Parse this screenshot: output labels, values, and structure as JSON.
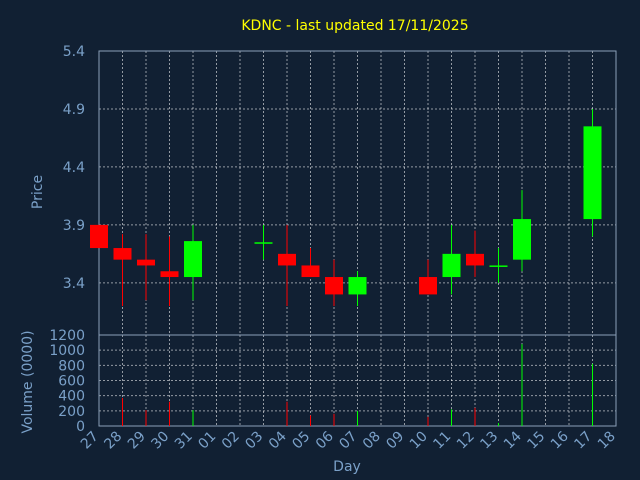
{
  "colors": {
    "background": "#112033",
    "up": "#00ff00",
    "down": "#ff0000",
    "wick_down": "#ff0000",
    "wick_up": "#00ff00",
    "text": "#7aa0c8",
    "title": "#ffff00"
  },
  "chart_data": {
    "type": "candlestick",
    "title": "KDNC - last updated 17/11/2025",
    "xlabel": "Day",
    "ylabel": "Price",
    "volume_label": "Volume (0000)",
    "grid": true,
    "categories": [
      "27",
      "28",
      "29",
      "30",
      "31",
      "01",
      "02",
      "03",
      "04",
      "05",
      "06",
      "07",
      "08",
      "09",
      "10",
      "11",
      "12",
      "13",
      "14",
      "15",
      "16",
      "17",
      "18"
    ],
    "price_ylim": [
      2.95,
      5.4
    ],
    "price_ticks": [
      "3.4",
      "3.9",
      "4.4",
      "4.9",
      "5.4"
    ],
    "volume_ylim": [
      0,
      1200
    ],
    "volume_ticks": [
      "0",
      "200",
      "400",
      "600",
      "800",
      "1000",
      "1200"
    ],
    "candles": [
      {
        "day": "27",
        "open": 3.9,
        "close": 3.7,
        "high": 3.9,
        "low": 3.7
      },
      {
        "day": "28",
        "open": 3.7,
        "close": 3.6,
        "high": 3.82,
        "low": 3.2
      },
      {
        "day": "29",
        "open": 3.6,
        "close": 3.55,
        "high": 3.82,
        "low": 3.25
      },
      {
        "day": "30",
        "open": 3.5,
        "close": 3.45,
        "high": 3.8,
        "low": 3.2
      },
      {
        "day": "31",
        "open": 3.45,
        "close": 3.76,
        "high": 3.9,
        "low": 3.25
      },
      {
        "day": "03",
        "open": 3.75,
        "close": 3.75,
        "high": 3.9,
        "low": 3.6
      },
      {
        "day": "04",
        "open": 3.65,
        "close": 3.55,
        "high": 3.9,
        "low": 3.2
      },
      {
        "day": "05",
        "open": 3.55,
        "close": 3.45,
        "high": 3.7,
        "low": 3.45
      },
      {
        "day": "06",
        "open": 3.45,
        "close": 3.3,
        "high": 3.6,
        "low": 3.2
      },
      {
        "day": "07",
        "open": 3.3,
        "close": 3.45,
        "high": 3.5,
        "low": 3.2
      },
      {
        "day": "10",
        "open": 3.45,
        "close": 3.3,
        "high": 3.6,
        "low": 3.3
      },
      {
        "day": "11",
        "open": 3.45,
        "close": 3.65,
        "high": 3.9,
        "low": 3.3
      },
      {
        "day": "12",
        "open": 3.65,
        "close": 3.55,
        "high": 3.85,
        "low": 3.45
      },
      {
        "day": "13",
        "open": 3.55,
        "close": 3.55,
        "high": 3.7,
        "low": 3.4
      },
      {
        "day": "14",
        "open": 3.6,
        "close": 3.95,
        "high": 4.2,
        "low": 3.5
      },
      {
        "day": "17",
        "open": 3.95,
        "close": 4.75,
        "high": 4.9,
        "low": 3.8
      }
    ],
    "volume": [
      {
        "day": "27",
        "value": 0,
        "dir": "down"
      },
      {
        "day": "28",
        "value": 370,
        "dir": "down"
      },
      {
        "day": "29",
        "value": 210,
        "dir": "down"
      },
      {
        "day": "30",
        "value": 320,
        "dir": "down"
      },
      {
        "day": "31",
        "value": 210,
        "dir": "up"
      },
      {
        "day": "03",
        "value": 0,
        "dir": "up"
      },
      {
        "day": "04",
        "value": 320,
        "dir": "down"
      },
      {
        "day": "05",
        "value": 140,
        "dir": "down"
      },
      {
        "day": "06",
        "value": 160,
        "dir": "down"
      },
      {
        "day": "07",
        "value": 200,
        "dir": "up"
      },
      {
        "day": "10",
        "value": 120,
        "dir": "down"
      },
      {
        "day": "11",
        "value": 220,
        "dir": "up"
      },
      {
        "day": "12",
        "value": 240,
        "dir": "down"
      },
      {
        "day": "13",
        "value": 40,
        "dir": "up"
      },
      {
        "day": "14",
        "value": 1080,
        "dir": "up"
      },
      {
        "day": "17",
        "value": 820,
        "dir": "up"
      }
    ]
  }
}
